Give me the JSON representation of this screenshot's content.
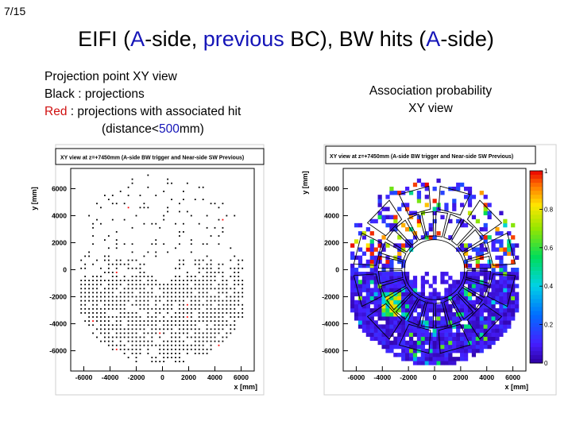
{
  "page_number": "7/15",
  "title": {
    "part1": "EIFI (",
    "a1": "A",
    "part2": "-side, ",
    "previous": "previous",
    "part3": " BC), BW hits (",
    "a2": "A",
    "part4": "-side)"
  },
  "caption_left": {
    "line1": "Projection point XY view",
    "line2": "Black : projections",
    "red_word": "Red",
    "line3_rest": " : projections with associated hit",
    "line4_open": "(distance<",
    "line4_value": "500",
    "line4_close": "mm)"
  },
  "caption_right": {
    "line1": "Association probability",
    "line2": "XY view"
  },
  "colors": {
    "title_blue": "#1515b8",
    "caption_red": "#d01010",
    "hist_black": "#000000"
  },
  "chart_data": [
    {
      "type": "scatter",
      "title": "XY view at z=+7450mm (A-side BW trigger and Near-side SW Previous)",
      "xlabel": "x [mm]",
      "ylabel": "y [mm]",
      "xlim": [
        -7000,
        7000
      ],
      "ylim": [
        -7500,
        7500
      ],
      "x_ticks": [
        -6000,
        -4000,
        -2000,
        0,
        2000,
        4000,
        6000
      ],
      "x_tick_labels": [
        "-6000",
        "-4000",
        "-2000",
        "0",
        "2000",
        "4000",
        "6000"
      ],
      "y_ticks": [
        6000,
        4000,
        2000,
        0,
        -2000,
        -4000,
        -6000
      ],
      "y_tick_labels": [
        "6000",
        "4000",
        "2000",
        "0",
        "-2000",
        "-4000",
        "-6000"
      ],
      "series": [
        {
          "name": "projections",
          "color": "black",
          "density": "dense grid of points for y below about 0 mm, sparse points above"
        },
        {
          "name": "projections with associated hit",
          "color": "red"
        }
      ]
    },
    {
      "type": "heatmap",
      "title": "XY view at z=+7450mm (A-side BW trigger and Near-side SW Previous)",
      "xlabel": "x [mm]",
      "ylabel": "y [mm]",
      "xlim": [
        -7000,
        7000
      ],
      "ylim": [
        -7500,
        7500
      ],
      "x_ticks": [
        -6000,
        -4000,
        -2000,
        0,
        2000,
        4000,
        6000
      ],
      "x_tick_labels": [
        "-6000",
        "-4000",
        "-2000",
        "0",
        "2000",
        "4000",
        "6000"
      ],
      "y_ticks": [
        6000,
        4000,
        2000,
        0,
        -2000,
        -4000,
        -6000
      ],
      "y_tick_labels": [
        "6000",
        "4000",
        "2000",
        "0",
        "-2000",
        "-4000",
        "-6000"
      ],
      "z_range": [
        0,
        1
      ],
      "colorbar_ticks": [
        1,
        0.8,
        0.6,
        0.4,
        0.2,
        0
      ],
      "colorbar_tick_labels": [
        "1",
        "0.8",
        "0.6",
        "0.4",
        "0.2",
        "0"
      ],
      "overlay": "EIFI chamber outlines (black polygons) arranged in a ring around the beam pipe"
    }
  ]
}
